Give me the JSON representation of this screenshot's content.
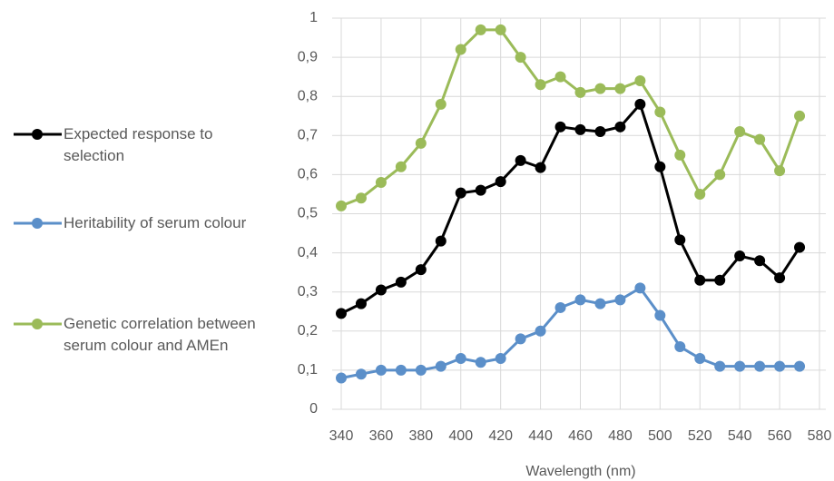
{
  "chart_data": {
    "type": "line",
    "x_label": "Wavelength (nm)",
    "x": [
      340,
      350,
      360,
      370,
      380,
      390,
      400,
      410,
      420,
      430,
      440,
      450,
      460,
      470,
      480,
      490,
      500,
      510,
      520,
      530,
      540,
      550,
      560,
      570
    ],
    "series": [
      {
        "name": "Expected response to selection",
        "color": "#000000",
        "values": [
          0.245,
          0.27,
          0.305,
          0.325,
          0.357,
          0.43,
          0.553,
          0.56,
          0.582,
          0.636,
          0.618,
          0.722,
          0.715,
          0.71,
          0.722,
          0.78,
          0.62,
          0.433,
          0.33,
          0.33,
          0.392,
          0.38,
          0.336,
          0.414
        ]
      },
      {
        "name": "Heritability of serum colour",
        "color": "#5b8fc9",
        "values": [
          0.08,
          0.09,
          0.1,
          0.1,
          0.1,
          0.11,
          0.13,
          0.12,
          0.13,
          0.18,
          0.2,
          0.26,
          0.28,
          0.27,
          0.28,
          0.31,
          0.24,
          0.16,
          0.13,
          0.11,
          0.11,
          0.11,
          0.11,
          0.11
        ]
      },
      {
        "name": "Genetic correlation between serum colour and AMEn",
        "color": "#9bbb59",
        "values": [
          0.52,
          0.54,
          0.58,
          0.62,
          0.68,
          0.78,
          0.92,
          0.97,
          0.97,
          0.9,
          0.83,
          0.85,
          0.81,
          0.82,
          0.82,
          0.84,
          0.76,
          0.65,
          0.55,
          0.6,
          0.71,
          0.69,
          0.61,
          0.75
        ]
      }
    ],
    "xlim": [
      340,
      580
    ],
    "xticks": [
      340,
      360,
      380,
      400,
      420,
      440,
      460,
      480,
      500,
      520,
      540,
      560,
      580
    ],
    "ylim": [
      0,
      1
    ],
    "yticks": [
      0,
      {
        "value": 0.1,
        "label": "0,1"
      },
      {
        "value": 0.2,
        "label": "0,2"
      },
      {
        "value": 0.3,
        "label": "0,3"
      },
      {
        "value": 0.4,
        "label": "0,4"
      },
      {
        "value": 0.5,
        "label": "0,5"
      },
      {
        "value": 0.6,
        "label": "0,6"
      },
      {
        "value": 0.7,
        "label": "0,7"
      },
      {
        "value": 0.8,
        "label": "0,8"
      },
      {
        "value": 0.9,
        "label": "0,9"
      },
      1
    ],
    "grid": true,
    "legend": "left"
  }
}
